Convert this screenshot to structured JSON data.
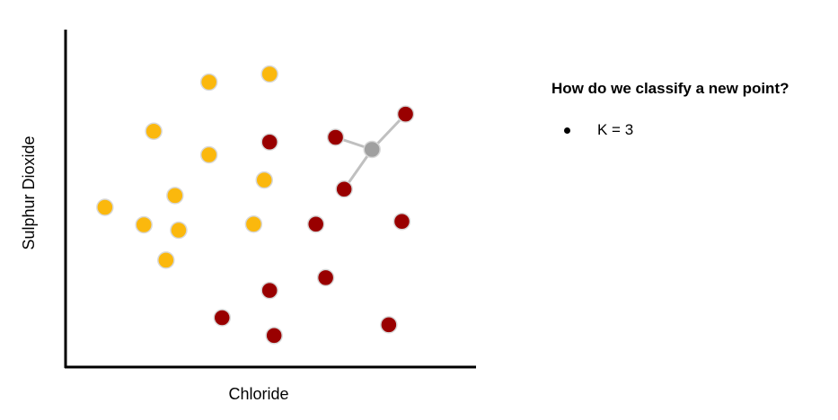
{
  "chart_data": {
    "type": "scatter",
    "xlabel": "Chloride",
    "ylabel": "Sulphur Dioxide",
    "xlim": [
      0,
      100
    ],
    "ylim": [
      0,
      100
    ],
    "grid": false,
    "colors": {
      "class_a": "#fbb80d",
      "class_b": "#990000",
      "new_point": "#a0a0a0",
      "link": "#c0c0c0"
    },
    "series": [
      {
        "points": [
          [
            34.8,
            84.4
          ],
          [
            49.6,
            86.8
          ],
          [
            21.3,
            69.8
          ],
          [
            34.8,
            62.8
          ],
          [
            26.5,
            50.7
          ],
          [
            48.3,
            55.3
          ],
          [
            9.4,
            47.2
          ],
          [
            18.9,
            42.0
          ],
          [
            27.4,
            40.4
          ],
          [
            45.7,
            42.2
          ],
          [
            24.3,
            31.5
          ]
        ]
      },
      {
        "points": [
          [
            49.6,
            66.6
          ],
          [
            65.7,
            68.0
          ],
          [
            82.8,
            74.9
          ],
          [
            67.8,
            52.6
          ],
          [
            60.9,
            42.2
          ],
          [
            81.9,
            43.0
          ],
          [
            63.3,
            26.3
          ],
          [
            49.6,
            22.5
          ],
          [
            38.0,
            14.4
          ],
          [
            50.7,
            9.1
          ],
          [
            78.7,
            12.3
          ]
        ]
      }
    ],
    "query_point": [
      74.6,
      64.4
    ],
    "neighbors": [
      [
        65.7,
        68.0
      ],
      [
        82.8,
        74.9
      ],
      [
        67.8,
        52.6
      ]
    ]
  },
  "panel": {
    "title": "How do we classify a new point?",
    "bullets": [
      "K = 3"
    ]
  }
}
